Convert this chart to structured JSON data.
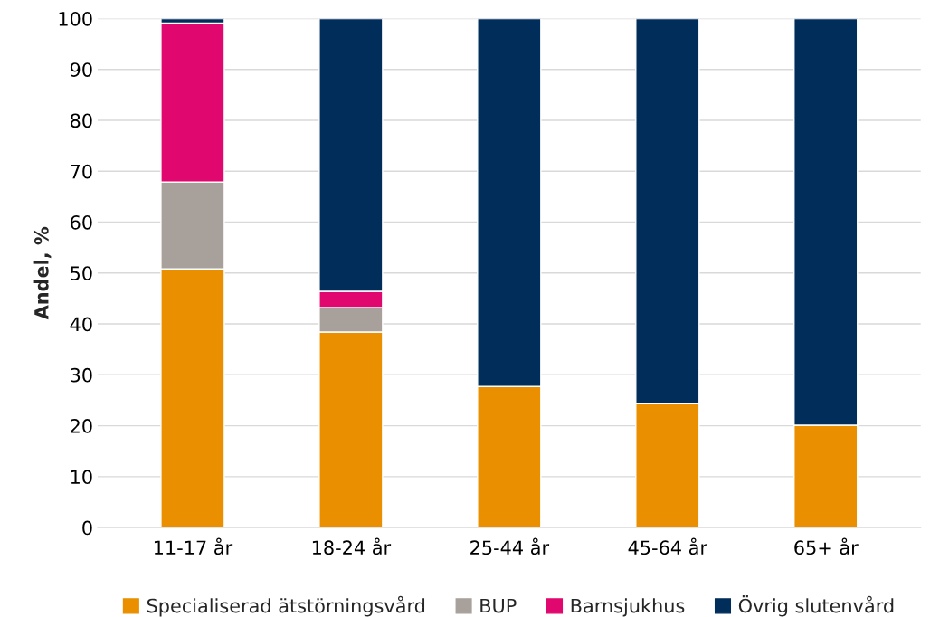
{
  "chart_data": {
    "type": "bar",
    "stacked": true,
    "ylabel": "Andel, %",
    "categories": [
      "11-17 år",
      "18-24 år",
      "25-44 år",
      "45-64 år",
      "65+ år"
    ],
    "series": [
      {
        "name": "Specialiserad ätstörningsvård",
        "color": "#e98f00",
        "values": [
          50.8,
          38.4,
          27.7,
          24.3,
          20.1
        ]
      },
      {
        "name": "BUP",
        "color": "#a8a09a",
        "values": [
          17.1,
          4.8,
          null,
          null,
          null
        ]
      },
      {
        "name": "Barnsjukhus",
        "color": "#e0086e",
        "values": [
          31.2,
          3.2,
          null,
          null,
          null
        ]
      },
      {
        "name": "Övrig slutenvård",
        "color": "#002d5a",
        "values": [
          0.9,
          53.6,
          72.3,
          75.7,
          79.9
        ]
      }
    ],
    "ylim": [
      0,
      100
    ],
    "yticks": [
      0,
      10,
      20,
      30,
      40,
      50,
      60,
      70,
      80,
      90,
      100
    ],
    "grid": "y",
    "legend": "bottom"
  }
}
